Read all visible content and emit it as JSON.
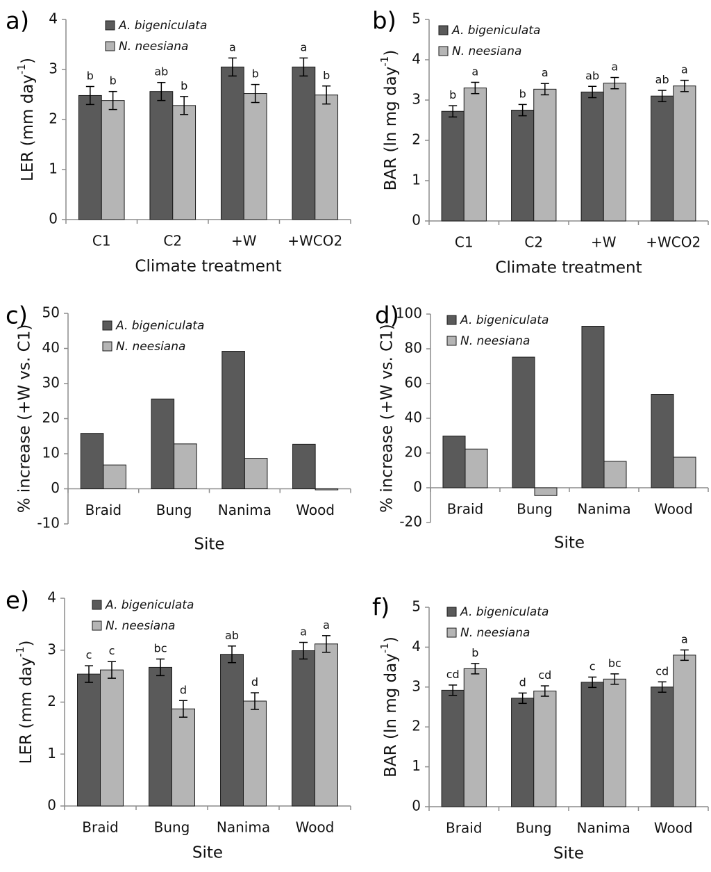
{
  "chart_data": [
    {
      "panel": "a)",
      "type": "bar",
      "ylabel": "LER (mm day",
      "ylabel_sup": "-1",
      "ylabel_tail": ")",
      "xlabel": "Climate treatment",
      "ylim": [
        0,
        4
      ],
      "yticks": [
        0,
        1,
        2,
        3,
        4
      ],
      "categories": [
        "C1",
        "C2",
        "+W",
        "+WCO2"
      ],
      "series": [
        {
          "name": "A. bigeniculata",
          "values": [
            2.48,
            2.56,
            3.05,
            3.05
          ],
          "errors": [
            0.18,
            0.18,
            0.18,
            0.18
          ],
          "letters": [
            "b",
            "ab",
            "a",
            "a"
          ]
        },
        {
          "name": "N. neesiana",
          "values": [
            2.38,
            2.28,
            2.52,
            2.49
          ],
          "errors": [
            0.18,
            0.18,
            0.18,
            0.18
          ],
          "letters": [
            "b",
            "b",
            "b",
            "b"
          ]
        }
      ]
    },
    {
      "panel": "b)",
      "type": "bar",
      "ylabel": "BAR (ln mg day",
      "ylabel_sup": "-1",
      "ylabel_tail": ")",
      "xlabel": "Climate treatment",
      "ylim": [
        0,
        5
      ],
      "yticks": [
        0,
        1,
        2,
        3,
        4,
        5
      ],
      "categories": [
        "C1",
        "C2",
        "+W",
        "+WCO2"
      ],
      "series": [
        {
          "name": "A. bigeniculata",
          "values": [
            2.72,
            2.75,
            3.2,
            3.1
          ],
          "errors": [
            0.14,
            0.14,
            0.14,
            0.14
          ],
          "letters": [
            "b",
            "b",
            "ab",
            "ab"
          ]
        },
        {
          "name": "N. neesiana",
          "values": [
            3.3,
            3.27,
            3.42,
            3.35
          ],
          "errors": [
            0.14,
            0.14,
            0.14,
            0.14
          ],
          "letters": [
            "a",
            "a",
            "a",
            "a"
          ]
        }
      ]
    },
    {
      "panel": "c)",
      "type": "bar",
      "ylabel": "% increase (+W vs. C1)",
      "xlabel": "Site",
      "ylim": [
        -10,
        50
      ],
      "yticks": [
        -10,
        0,
        10,
        20,
        30,
        40,
        50
      ],
      "categories": [
        "Braid",
        "Bung",
        "Nanima",
        "Wood"
      ],
      "series": [
        {
          "name": "A. bigeniculata",
          "values": [
            15.8,
            25.6,
            39.2,
            12.7
          ]
        },
        {
          "name": "N. neesiana",
          "values": [
            6.8,
            12.8,
            8.7,
            -0.3
          ]
        }
      ]
    },
    {
      "panel": "d)",
      "type": "bar",
      "ylabel": "% increase (+W vs. C1)",
      "xlabel": "Site",
      "ylim": [
        -20,
        100
      ],
      "yticks": [
        -20,
        0,
        20,
        40,
        60,
        80,
        100
      ],
      "categories": [
        "Braid",
        "Bung",
        "Nanima",
        "Wood"
      ],
      "series": [
        {
          "name": "A. bigeniculata",
          "values": [
            29.8,
            75.2,
            93.0,
            53.8
          ]
        },
        {
          "name": "N. neesiana",
          "values": [
            22.3,
            -4.5,
            15.2,
            17.6
          ]
        }
      ]
    },
    {
      "panel": "e)",
      "type": "bar",
      "ylabel": "LER (mm day",
      "ylabel_sup": "-1",
      "ylabel_tail": ")",
      "xlabel": "Site",
      "ylim": [
        0,
        4
      ],
      "yticks": [
        0,
        1,
        2,
        3,
        4
      ],
      "categories": [
        "Braid",
        "Bung",
        "Nanima",
        "Wood"
      ],
      "series": [
        {
          "name": "A. bigeniculata",
          "values": [
            2.54,
            2.67,
            2.92,
            2.99
          ],
          "errors": [
            0.16,
            0.16,
            0.16,
            0.16
          ],
          "letters": [
            "c",
            "bc",
            "ab",
            "a"
          ]
        },
        {
          "name": "N. neesiana",
          "values": [
            2.62,
            1.87,
            2.02,
            3.12
          ],
          "errors": [
            0.16,
            0.16,
            0.16,
            0.16
          ],
          "letters": [
            "c",
            "d",
            "d",
            "a"
          ]
        }
      ]
    },
    {
      "panel": "f)",
      "type": "bar",
      "ylabel": "BAR (ln mg day",
      "ylabel_sup": "-1",
      "ylabel_tail": ")",
      "xlabel": "Site",
      "ylim": [
        0,
        5
      ],
      "yticks": [
        0,
        1,
        2,
        3,
        4,
        5
      ],
      "categories": [
        "Braid",
        "Bung",
        "Nanima",
        "Wood"
      ],
      "series": [
        {
          "name": "A. bigeniculata",
          "values": [
            2.92,
            2.72,
            3.12,
            3.0
          ],
          "errors": [
            0.13,
            0.13,
            0.13,
            0.13
          ],
          "letters": [
            "cd",
            "d",
            "c",
            "cd"
          ]
        },
        {
          "name": "N. neesiana",
          "values": [
            3.46,
            2.9,
            3.2,
            3.8
          ],
          "errors": [
            0.13,
            0.13,
            0.13,
            0.13
          ],
          "letters": [
            "b",
            "cd",
            "bc",
            "a"
          ]
        }
      ]
    }
  ],
  "colors": {
    "a_bigeniculata": "#5a5a5a",
    "n_neesiana": "#b5b5b5",
    "axis": "#8c8c8c",
    "bar_stroke": "#1a1a1a"
  }
}
